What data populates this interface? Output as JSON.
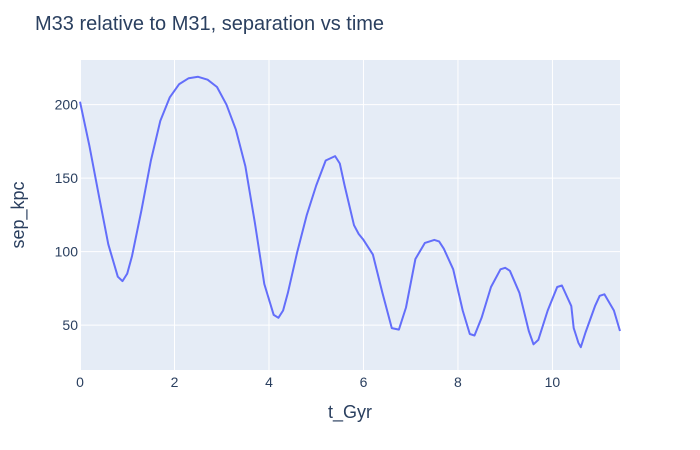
{
  "chart_data": {
    "type": "line",
    "title": "M33 relative to M31, separation vs time",
    "xlabel": "t_Gyr",
    "ylabel": "sep_kpc",
    "xlim": [
      0,
      11.43
    ],
    "ylim": [
      19.5,
      230.4
    ],
    "x_ticks": [
      0,
      2,
      4,
      6,
      8,
      10
    ],
    "y_ticks": [
      50,
      100,
      150,
      200
    ],
    "grid": true,
    "colors": {
      "line": "#636efa",
      "plot_bg": "#e5ecf6",
      "grid": "#ffffff",
      "text": "#2a3f5f"
    },
    "series": [
      {
        "x": [
          0,
          0.2,
          0.4,
          0.6,
          0.8,
          0.9,
          1.0,
          1.1,
          1.3,
          1.5,
          1.7,
          1.9,
          2.1,
          2.3,
          2.5,
          2.7,
          2.9,
          3.1,
          3.3,
          3.5,
          3.7,
          3.9,
          4.1,
          4.2,
          4.3,
          4.4,
          4.6,
          4.8,
          5.0,
          5.2,
          5.4,
          5.5,
          5.6,
          5.8,
          5.9,
          6.0,
          6.2,
          6.4,
          6.6,
          6.75,
          6.9,
          7.1,
          7.3,
          7.5,
          7.6,
          7.7,
          7.9,
          8.1,
          8.25,
          8.35,
          8.5,
          8.7,
          8.9,
          9.0,
          9.1,
          9.3,
          9.5,
          9.6,
          9.7,
          9.9,
          10.1,
          10.2,
          10.4,
          10.45,
          10.5,
          10.55,
          10.6,
          10.7,
          10.9,
          11.0,
          11.1,
          11.3,
          11.43
        ],
        "y": [
          202,
          172,
          138,
          105,
          83,
          80,
          85,
          97,
          128,
          162,
          189,
          205,
          214,
          218,
          219,
          217,
          212,
          200,
          183,
          158,
          120,
          78,
          57,
          55,
          60,
          72,
          100,
          125,
          145,
          162,
          165,
          160,
          145,
          118,
          112,
          108,
          98,
          72,
          48,
          47,
          62,
          95,
          106,
          108,
          107,
          102,
          88,
          60,
          44,
          43,
          55,
          76,
          88,
          89,
          87,
          72,
          46,
          37,
          40,
          60,
          76,
          77,
          63,
          48,
          43,
          38,
          35,
          45,
          63,
          70,
          71,
          60,
          46
        ]
      }
    ]
  }
}
